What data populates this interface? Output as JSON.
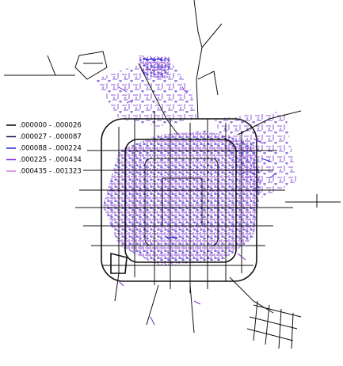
{
  "legend": {
    "items": [
      {
        "label": ".000000 - .000026",
        "color": "#000000"
      },
      {
        "label": ".000027 - .000087",
        "color": "#1c1c5a"
      },
      {
        "label": ".000088 - .000224",
        "color": "#2a2ad0"
      },
      {
        "label": ".000225 - .000434",
        "color": "#8a2be2"
      },
      {
        "label": ".000435 - .001323",
        "color": "#d77ad7"
      }
    ]
  }
}
